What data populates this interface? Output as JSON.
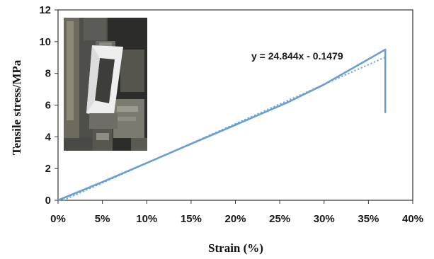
{
  "chart_data": {
    "type": "line",
    "title": "",
    "xlabel": "Strain (%)",
    "ylabel": "Tensile stress/MPa",
    "xlim": [
      0,
      40
    ],
    "ylim": [
      0,
      12
    ],
    "x_ticks": [
      0,
      5,
      10,
      15,
      20,
      25,
      30,
      35,
      40
    ],
    "x_tick_labels": [
      "0%",
      "5%",
      "10%",
      "15%",
      "20%",
      "25%",
      "30%",
      "35%",
      "40%"
    ],
    "y_ticks": [
      0,
      2,
      4,
      6,
      8,
      10,
      12
    ],
    "y_tick_labels": [
      "0",
      "2",
      "4",
      "6",
      "8",
      "10",
      "12"
    ],
    "grid": false,
    "legend": "none",
    "series": [
      {
        "style": "solid",
        "color": "#6a9fd0",
        "x": [
          0,
          5,
          10,
          13.5,
          20,
          26,
          30,
          36.9,
          36.9
        ],
        "y": [
          0,
          1.15,
          2.35,
          3.2,
          4.75,
          6.2,
          7.3,
          9.5,
          5.5
        ]
      }
    ],
    "trendline": {
      "type": "linear",
      "style": "dotted",
      "color": "#6a9fd0",
      "slope": 24.844,
      "intercept": -0.1479,
      "x_range": [
        0,
        36.9
      ],
      "equation_label": "y = 24.844x - 0.1479"
    },
    "inset_photo": "specimen in tensile testing machine grips"
  }
}
